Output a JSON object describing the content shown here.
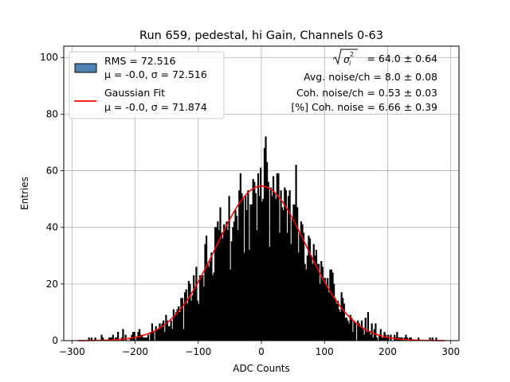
{
  "chart_data": {
    "type": "bar",
    "title": "Run 659, pedestal, hi Gain, Channels 0-63",
    "xlabel": "ADC Counts",
    "ylabel": "Entries",
    "xlim": [
      -313,
      313
    ],
    "ylim": [
      0,
      104
    ],
    "xticks": [
      -300,
      -200,
      -100,
      0,
      100,
      200,
      300
    ],
    "yticks": [
      0,
      20,
      40,
      60,
      80,
      100
    ],
    "grid": true,
    "legend_position": "top-left",
    "colors": {
      "histogram_legend_fill": "#4f83b8",
      "histogram_bars": "#000000",
      "fit_line": "#ff0000",
      "grid": "#b0b0b0"
    },
    "histogram": {
      "name": "RMS = 72.516",
      "name_line2": "μ = -0.0, σ = 72.516",
      "bin_edges_range": [
        -290,
        290
      ],
      "bin_width": 2,
      "mean": 0.0,
      "sigma": 72.516,
      "peak_entries": 72
    },
    "fit": {
      "name": "Gaussian Fit",
      "name_line2": "μ = -0.0, σ = 71.874",
      "mu": 0.0,
      "sigma": 71.874,
      "amplitude": 54.6
    },
    "annotations": [
      "= 64.0 ± 0.64",
      "Avg. noise/ch = 8.0 ± 0.08",
      "Coh. noise/ch = 0.53 ± 0.03",
      "[%] Coh. noise = 6.66 ± 0.39"
    ]
  }
}
